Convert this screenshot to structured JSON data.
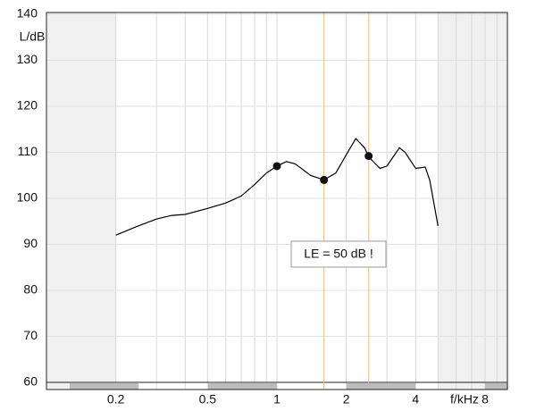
{
  "chart_data": {
    "type": "line",
    "x": [
      0.2,
      0.25,
      0.3,
      0.35,
      0.4,
      0.5,
      0.6,
      0.7,
      0.8,
      0.9,
      1.0,
      1.1,
      1.2,
      1.4,
      1.6,
      1.8,
      2.0,
      2.2,
      2.4,
      2.5,
      2.8,
      3.0,
      3.4,
      3.6,
      4.0,
      4.4,
      4.6,
      5.0
    ],
    "values": [
      92,
      94,
      95.5,
      96.3,
      96.5,
      97.8,
      99,
      100.5,
      103,
      105.5,
      107,
      108,
      107.5,
      105,
      104,
      105.5,
      109.5,
      113,
      111,
      109,
      106.5,
      107,
      111,
      110,
      106.5,
      106.8,
      104,
      94
    ],
    "color": "#000000",
    "points": {
      "x": [
        1,
        1.6,
        2.5
      ],
      "values": [
        107,
        104,
        109.2
      ],
      "color": "#111111"
    },
    "vlines": [
      1.6,
      2.5
    ],
    "vline_color": "#f0c080",
    "shaded_ranges": [
      [
        0.1,
        0.2
      ],
      [
        5,
        10
      ]
    ],
    "shade_color": "#f0f0f0",
    "xlim": [
      0.1,
      10
    ],
    "xscale": "log",
    "xticks": [
      0.2,
      0.5,
      1,
      2,
      4,
      8
    ],
    "xgrid": [
      0.2,
      0.3,
      0.4,
      0.5,
      0.6,
      0.7,
      0.8,
      0.9,
      1,
      2,
      3,
      4,
      5,
      6,
      7,
      8,
      9
    ],
    "ylim": [
      60,
      140
    ],
    "yticks": [
      60,
      70,
      80,
      90,
      100,
      110,
      120,
      130,
      140
    ],
    "grid": true,
    "xlabel": "f/kHz",
    "ylabel": "L/dB",
    "annotation": "LE = 50 dB !"
  }
}
